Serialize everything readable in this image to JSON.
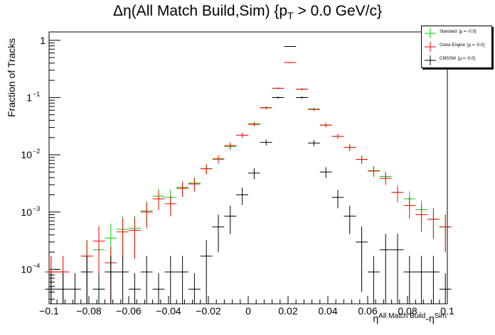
{
  "chart_data": {
    "type": "scatter",
    "title": "Δη(All Match Build,Sim) {p",
    "title_sub": "T",
    "title_tail": " > 0.0 GeV/c}",
    "ylabel": "Fraction of Tracks",
    "xlabel_main": "η",
    "xlabel_sup1": "All Match Build",
    "xlabel_mid": "-η",
    "xlabel_sup2": "Sim",
    "xlim": [
      -0.1,
      0.1
    ],
    "ylim": [
      2.5e-05,
      1.4
    ],
    "yscale": "log",
    "grid": false,
    "legend_position": "top-right",
    "x_ticks": [
      -0.1,
      -0.08,
      -0.06,
      -0.04,
      -0.02,
      0,
      0.02,
      0.04,
      0.06,
      0.08,
      0.1
    ],
    "x_tick_labels": [
      "−0.1",
      "−0.08",
      "−0.06",
      "−0.04",
      "−0.02",
      "0",
      "0.02",
      "0.04",
      "0.06",
      "0.08",
      "0.1"
    ],
    "y_tick_labels": [
      "10",
      "10",
      "10",
      "1"
    ],
    "y_tick_exps": [
      "−4",
      "−3",
      "−2",
      "−1"
    ],
    "bin_centers": [
      -0.099,
      -0.093,
      -0.087,
      -0.081,
      -0.075,
      -0.069,
      -0.063,
      -0.057,
      -0.051,
      -0.045,
      -0.039,
      -0.033,
      -0.027,
      -0.021,
      -0.015,
      -0.009,
      -0.003,
      0.003,
      0.009,
      0.015,
      0.021,
      0.027,
      0.033,
      0.039,
      0.045,
      0.051,
      0.057,
      0.063,
      0.069,
      0.075,
      0.081,
      0.087,
      0.093,
      0.099
    ],
    "series": [
      {
        "name": "Standard",
        "mu": "[μ = -0.0]",
        "color": "#00cc00",
        "values": [
          9e-05,
          9e-05,
          null,
          0.00017,
          0.00022,
          0.00035,
          0.0005,
          0.00052,
          0.00105,
          0.0019,
          0.0018,
          0.0027,
          0.0032,
          0.0057,
          0.0083,
          0.014,
          0.022,
          0.035,
          0.067,
          0.145,
          0.41,
          0.14,
          0.063,
          0.033,
          0.021,
          0.0135,
          0.0083,
          0.0053,
          0.0042,
          0.0022,
          0.0017,
          0.0011,
          0.00075,
          0.00055
        ]
      },
      {
        "name": "Clone Engine",
        "mu": "[μ = -0.0]",
        "color": "#ff0000",
        "values": [
          9e-05,
          9e-05,
          null,
          0.00017,
          0.00031,
          0.00013,
          0.00045,
          0.00048,
          0.001,
          0.0017,
          0.0014,
          0.0026,
          0.0031,
          0.0057,
          0.0085,
          0.0145,
          0.022,
          0.034,
          0.066,
          0.145,
          0.41,
          0.14,
          0.062,
          0.033,
          0.021,
          0.0135,
          0.0083,
          0.0052,
          0.0039,
          0.0022,
          0.0013,
          0.0009,
          0.00075,
          0.00055
        ]
      },
      {
        "name": "CMSSW",
        "mu": "[μ = -0.0]",
        "color": "#000000",
        "values": [
          4.5e-05,
          4.5e-05,
          4.5e-05,
          9e-05,
          4.5e-05,
          9e-05,
          9e-05,
          4.5e-05,
          9e-05,
          4.5e-05,
          9e-05,
          9e-05,
          4.5e-05,
          0.00017,
          0.00055,
          0.00085,
          0.002,
          0.0048,
          0.0165,
          0.1,
          0.78,
          0.1,
          0.016,
          0.005,
          0.0018,
          0.00085,
          0.0003,
          9e-05,
          0.00022,
          0.00022,
          9e-05,
          9e-05,
          9e-05,
          4.5e-05
        ]
      }
    ]
  }
}
